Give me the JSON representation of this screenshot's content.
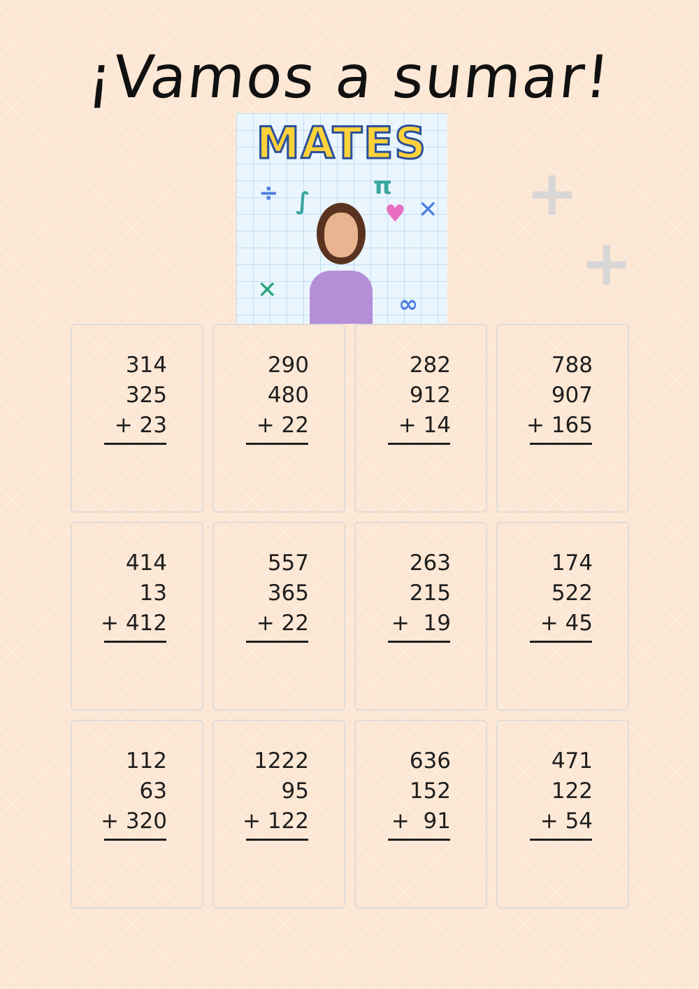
{
  "title": "¡Vamos a sumar!",
  "hero_image": {
    "logo_text": "MATES",
    "description_icon": "bitmoji-teacher-math-icon"
  },
  "colors": {
    "background": "#fce7d4",
    "card_border": "#e0dcd8",
    "text": "#1e1e1e"
  },
  "problems": [
    {
      "lines": [
        "314",
        "325",
        "+ 23"
      ]
    },
    {
      "lines": [
        "290",
        "480",
        "+ 22"
      ]
    },
    {
      "lines": [
        "282",
        "912",
        "+ 14"
      ]
    },
    {
      "lines": [
        "788",
        "907",
        "+ 165"
      ]
    },
    {
      "lines": [
        "414",
        "13",
        "+ 412"
      ]
    },
    {
      "lines": [
        "557",
        "365",
        "+ 22"
      ]
    },
    {
      "lines": [
        "263",
        "215",
        "+  19"
      ]
    },
    {
      "lines": [
        "174",
        "522",
        "+ 45"
      ]
    },
    {
      "lines": [
        "112",
        "63",
        "+ 320"
      ]
    },
    {
      "lines": [
        "1222",
        "95",
        "+ 122"
      ]
    },
    {
      "lines": [
        "636",
        "152",
        "+  91"
      ]
    },
    {
      "lines": [
        "471",
        "122",
        "+ 54"
      ]
    }
  ]
}
